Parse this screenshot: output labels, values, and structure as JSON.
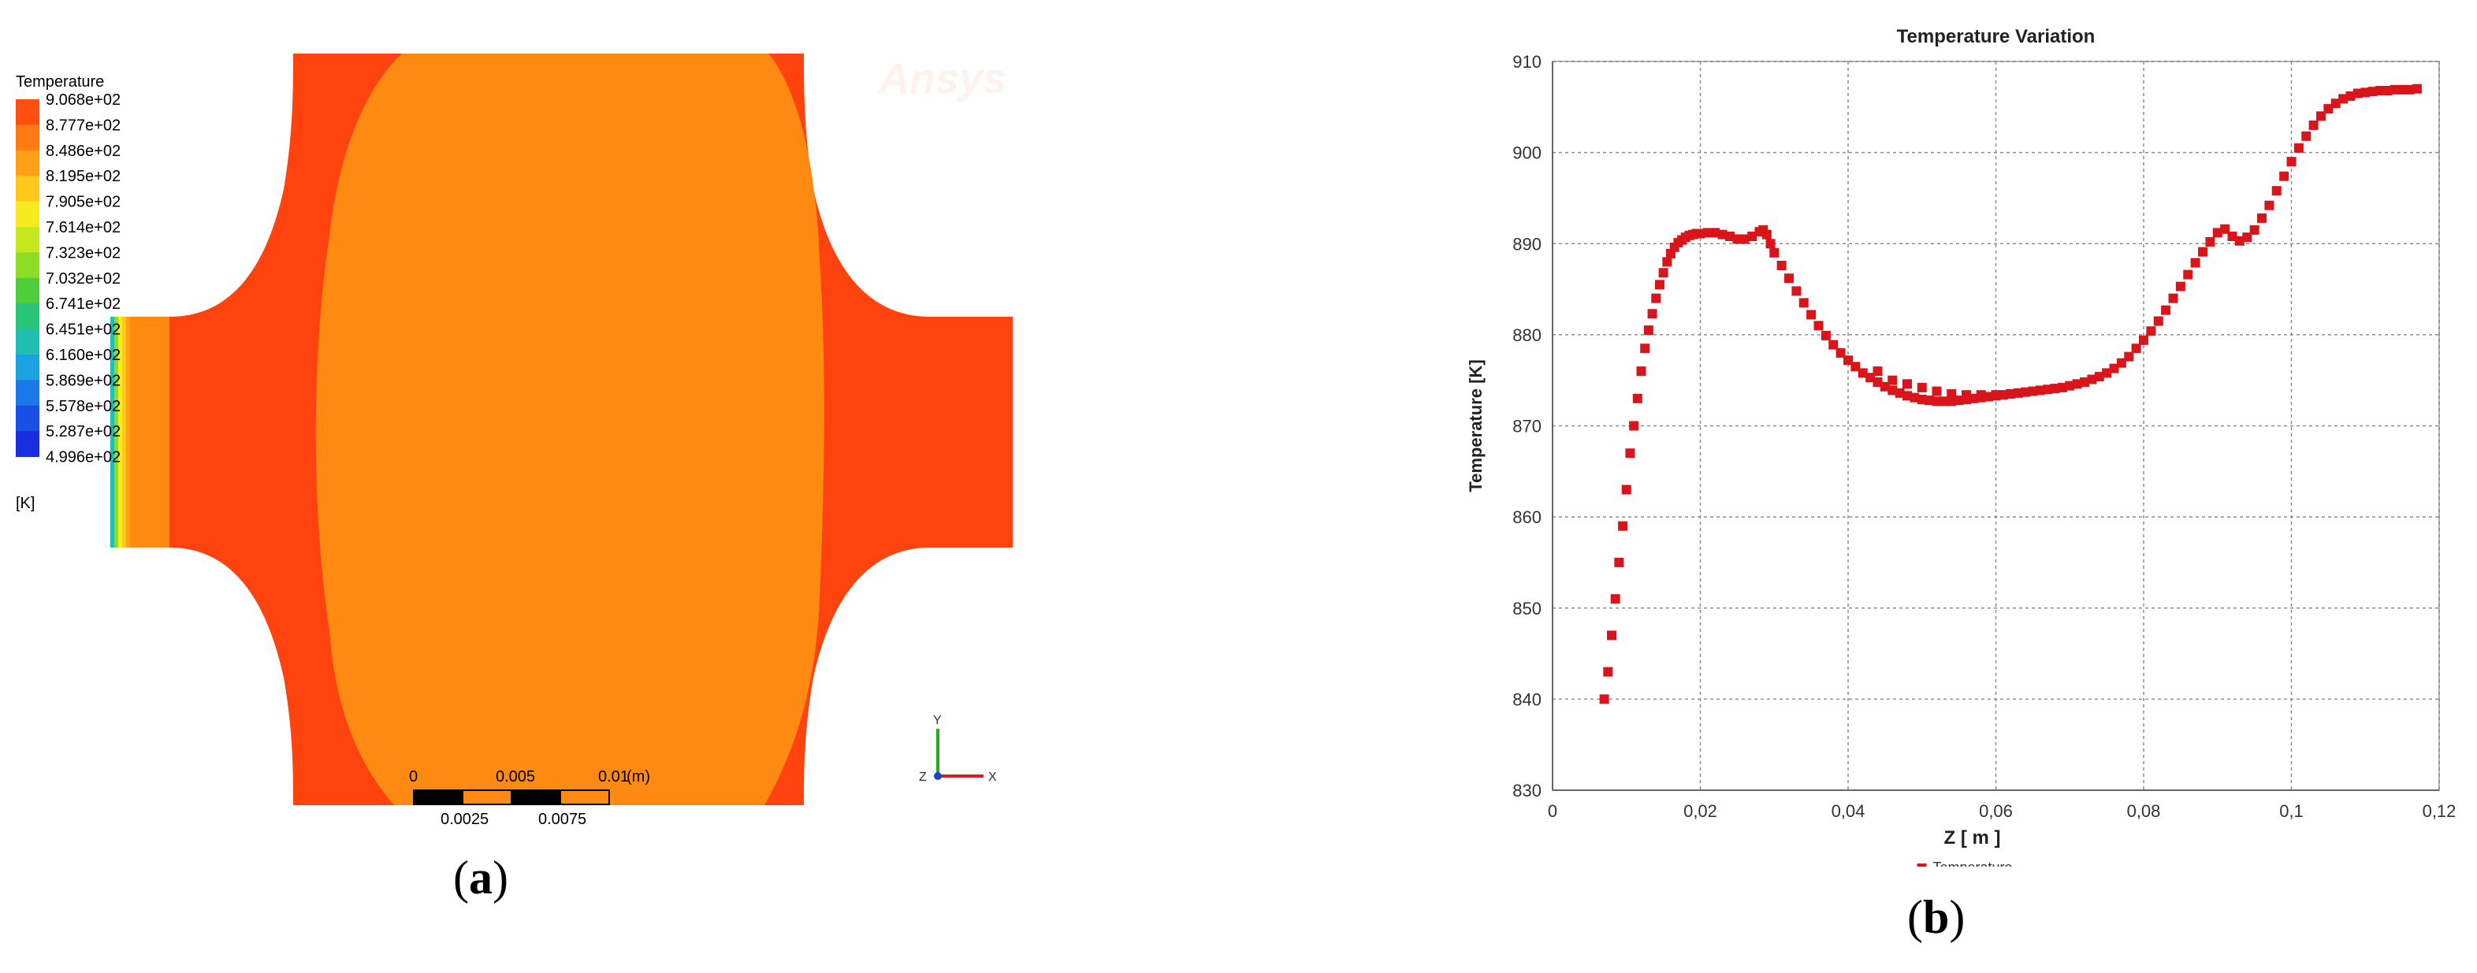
{
  "panel_a": {
    "legend": {
      "title": "Temperature",
      "unit": "[K]",
      "levels": [
        "9.068e+02",
        "8.777e+02",
        "8.486e+02",
        "8.195e+02",
        "7.905e+02",
        "7.614e+02",
        "7.323e+02",
        "7.032e+02",
        "6.741e+02",
        "6.451e+02",
        "6.160e+02",
        "5.869e+02",
        "5.578e+02",
        "5.287e+02",
        "4.996e+02"
      ],
      "colors": [
        "#ff4f10",
        "#ff7a12",
        "#ffa016",
        "#ffc81a",
        "#f7ea1e",
        "#c7e81e",
        "#8edc24",
        "#4fcd3a",
        "#29c679",
        "#1fc0b2",
        "#1ba2e0",
        "#1b78e8",
        "#1a4fe6",
        "#1a2de0"
      ]
    },
    "watermark": "Ansys",
    "scale": {
      "top_labels": [
        "0",
        "0.005",
        "0.01"
      ],
      "unit": "(m)",
      "bottom_labels": [
        "0.0025",
        "0.0075"
      ]
    },
    "axes_triad": {
      "y": "Y",
      "x": "X",
      "z": "Z"
    },
    "caption_open": "(",
    "caption_letter": "a",
    "caption_close": ")",
    "colors": {
      "hot": "#ff430f",
      "mid": "#ff8a12"
    }
  },
  "panel_b": {
    "caption_open": "(",
    "caption_letter": "b",
    "caption_close": ")"
  },
  "chart_data": {
    "type": "scatter",
    "title": "Temperature Variation",
    "xlabel": "Z [ m ]",
    "ylabel": "Temperature [K]",
    "xlim": [
      0,
      0.12
    ],
    "ylim": [
      830,
      910
    ],
    "xticks": [
      0,
      0.02,
      0.04,
      0.06,
      0.08,
      0.1,
      0.12
    ],
    "xtick_labels": [
      "0",
      "0,02",
      "0,04",
      "0,06",
      "0,08",
      "0,1",
      "0,12"
    ],
    "yticks": [
      830,
      840,
      850,
      860,
      870,
      880,
      890,
      900,
      910
    ],
    "grid": true,
    "legend_position": "bottom-center",
    "series": [
      {
        "name": "Temperature",
        "color": "#d9151b",
        "x": [
          0.007,
          0.0075,
          0.008,
          0.0085,
          0.009,
          0.0095,
          0.01,
          0.0105,
          0.011,
          0.0115,
          0.012,
          0.0125,
          0.013,
          0.0135,
          0.014,
          0.0145,
          0.015,
          0.0155,
          0.016,
          0.0165,
          0.017,
          0.0175,
          0.018,
          0.0185,
          0.019,
          0.0195,
          0.02,
          0.021,
          0.022,
          0.023,
          0.024,
          0.025,
          0.026,
          0.027,
          0.028,
          0.0285,
          0.029,
          0.0295,
          0.03,
          0.031,
          0.032,
          0.033,
          0.034,
          0.035,
          0.036,
          0.037,
          0.038,
          0.039,
          0.04,
          0.041,
          0.042,
          0.043,
          0.044,
          0.045,
          0.046,
          0.047,
          0.048,
          0.049,
          0.05,
          0.051,
          0.052,
          0.053,
          0.054,
          0.055,
          0.056,
          0.057,
          0.058,
          0.059,
          0.06,
          0.061,
          0.062,
          0.063,
          0.064,
          0.065,
          0.066,
          0.067,
          0.068,
          0.069,
          0.07,
          0.071,
          0.072,
          0.073,
          0.074,
          0.075,
          0.076,
          0.077,
          0.078,
          0.079,
          0.08,
          0.081,
          0.082,
          0.083,
          0.084,
          0.085,
          0.086,
          0.087,
          0.088,
          0.089,
          0.09,
          0.091,
          0.092,
          0.093,
          0.094,
          0.095,
          0.096,
          0.097,
          0.098,
          0.099,
          0.1,
          0.101,
          0.102,
          0.103,
          0.104,
          0.105,
          0.106,
          0.107,
          0.108,
          0.109,
          0.11,
          0.111,
          0.112,
          0.113,
          0.114,
          0.115,
          0.116,
          0.117,
          0.044,
          0.046,
          0.048,
          0.05,
          0.052,
          0.054,
          0.056,
          0.058,
          0.06,
          0.062
        ],
        "y": [
          840,
          843,
          847,
          851,
          855,
          859,
          863,
          867,
          870,
          873,
          876,
          878.5,
          880.5,
          882.3,
          884,
          885.5,
          886.8,
          888,
          888.9,
          889.6,
          890.1,
          890.4,
          890.7,
          890.9,
          891,
          891.1,
          891.1,
          891.2,
          891.2,
          891,
          890.8,
          890.5,
          890.5,
          890.8,
          891.3,
          891.5,
          891,
          890,
          889,
          887.6,
          886.2,
          884.8,
          883.5,
          882.2,
          881,
          879.9,
          878.9,
          878,
          877.2,
          876.5,
          875.8,
          875.3,
          874.8,
          874.3,
          873.9,
          873.6,
          873.3,
          873.1,
          872.9,
          872.8,
          872.7,
          872.7,
          872.7,
          872.8,
          872.9,
          873,
          873.1,
          873.2,
          873.3,
          873.4,
          873.5,
          873.6,
          873.7,
          873.8,
          873.9,
          874,
          874.1,
          874.2,
          874.4,
          874.6,
          874.8,
          875.1,
          875.4,
          875.8,
          876.3,
          876.9,
          877.6,
          878.5,
          879.4,
          880.4,
          881.5,
          882.7,
          884,
          885.3,
          886.6,
          887.9,
          889.1,
          890.2,
          891.2,
          891.6,
          890.8,
          890.3,
          890.7,
          891.5,
          892.8,
          894.2,
          895.8,
          897.4,
          899,
          900.5,
          901.8,
          903,
          904,
          904.8,
          905.4,
          905.9,
          906.2,
          906.5,
          906.6,
          906.7,
          906.8,
          906.8,
          906.9,
          906.9,
          906.9,
          907,
          876,
          875,
          874.6,
          874.2,
          873.8,
          873.5,
          873.4,
          873.4,
          873.4,
          873.5
        ]
      }
    ]
  }
}
